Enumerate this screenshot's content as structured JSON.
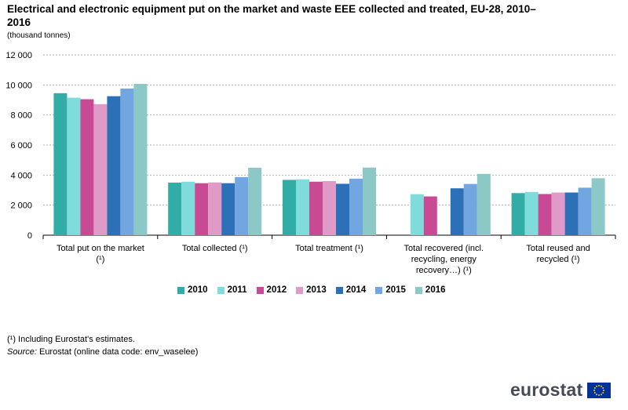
{
  "title": "Electrical and electronic equipment put on the market and waste EEE collected and treated, EU-28, 2010–2016",
  "subtitle": "(thousand tonnes)",
  "footnote": "(¹) Including Eurostat's estimates.",
  "source_label": "Source:",
  "source_text": " Eurostat (online data code: env_waselee)",
  "logo_text": "eurostat",
  "chart_data": {
    "type": "bar",
    "categories": [
      [
        "Total put on the market",
        "(¹)"
      ],
      [
        "Total collected (¹)"
      ],
      [
        "Total treatment (¹)"
      ],
      [
        "Total recovered  (incl.",
        "recycling, energy",
        "recovery…)   (¹)"
      ],
      [
        "Total reused and",
        "recycled (¹)"
      ]
    ],
    "series": [
      {
        "name": "2010",
        "color": "#32aca6",
        "values": [
          9450,
          3500,
          3680,
          null,
          2800
        ]
      },
      {
        "name": "2011",
        "color": "#80dcdc",
        "values": [
          9150,
          3560,
          3720,
          2730,
          2880
        ]
      },
      {
        "name": "2012",
        "color": "#c84a95",
        "values": [
          9050,
          3460,
          3560,
          2580,
          2740
        ]
      },
      {
        "name": "2013",
        "color": "#e09ac8",
        "values": [
          8720,
          3510,
          3600,
          null,
          2840
        ]
      },
      {
        "name": "2014",
        "color": "#2c70b8",
        "values": [
          9250,
          3460,
          3420,
          3120,
          2840
        ]
      },
      {
        "name": "2015",
        "color": "#72a6e0",
        "values": [
          9760,
          3870,
          3760,
          3410,
          3160
        ]
      },
      {
        "name": "2016",
        "color": "#8cc8c6",
        "values": [
          10070,
          4490,
          4500,
          4080,
          3790
        ]
      }
    ],
    "yticks": [
      "0",
      "2 000",
      "4 000",
      "6 000",
      "8 000",
      "10 000",
      "12 000"
    ],
    "ylim": [
      0,
      12000
    ],
    "grid": true,
    "legend_position": "bottom"
  }
}
